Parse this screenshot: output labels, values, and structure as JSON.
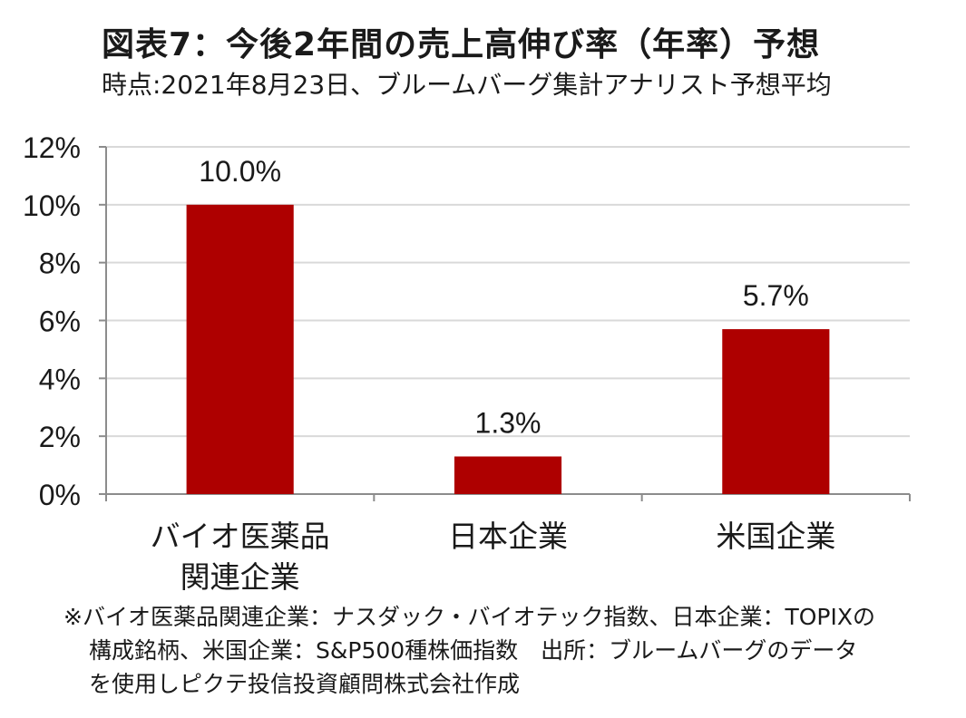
{
  "title": "図表7：今後2年間の売上高伸び率（年率）予想",
  "subtitle": "時点:2021年8月23日、ブルームバーグ集計アナリスト予想平均",
  "chart_data": {
    "type": "bar",
    "categories": [
      [
        "バイオ医薬品",
        "関連企業"
      ],
      [
        "日本企業"
      ],
      [
        "米国企業"
      ]
    ],
    "values": [
      10.0,
      1.3,
      5.7
    ],
    "value_labels": [
      "10.0%",
      "1.3%",
      "5.7%"
    ],
    "ylim": [
      0,
      12
    ],
    "yticks": [
      "0%",
      "2%",
      "4%",
      "6%",
      "8%",
      "10%",
      "12%"
    ],
    "grid": true,
    "bar_color": "#ae0000"
  },
  "notes": [
    "※バイオ医薬品関連企業：ナスダック・バイオテック指数、日本企業：TOPIXの",
    "構成銘柄、米国企業：S&P500種株価指数　出所：ブルームバーグのデータ",
    "を使用しピクテ投信投資顧問株式会社作成"
  ]
}
